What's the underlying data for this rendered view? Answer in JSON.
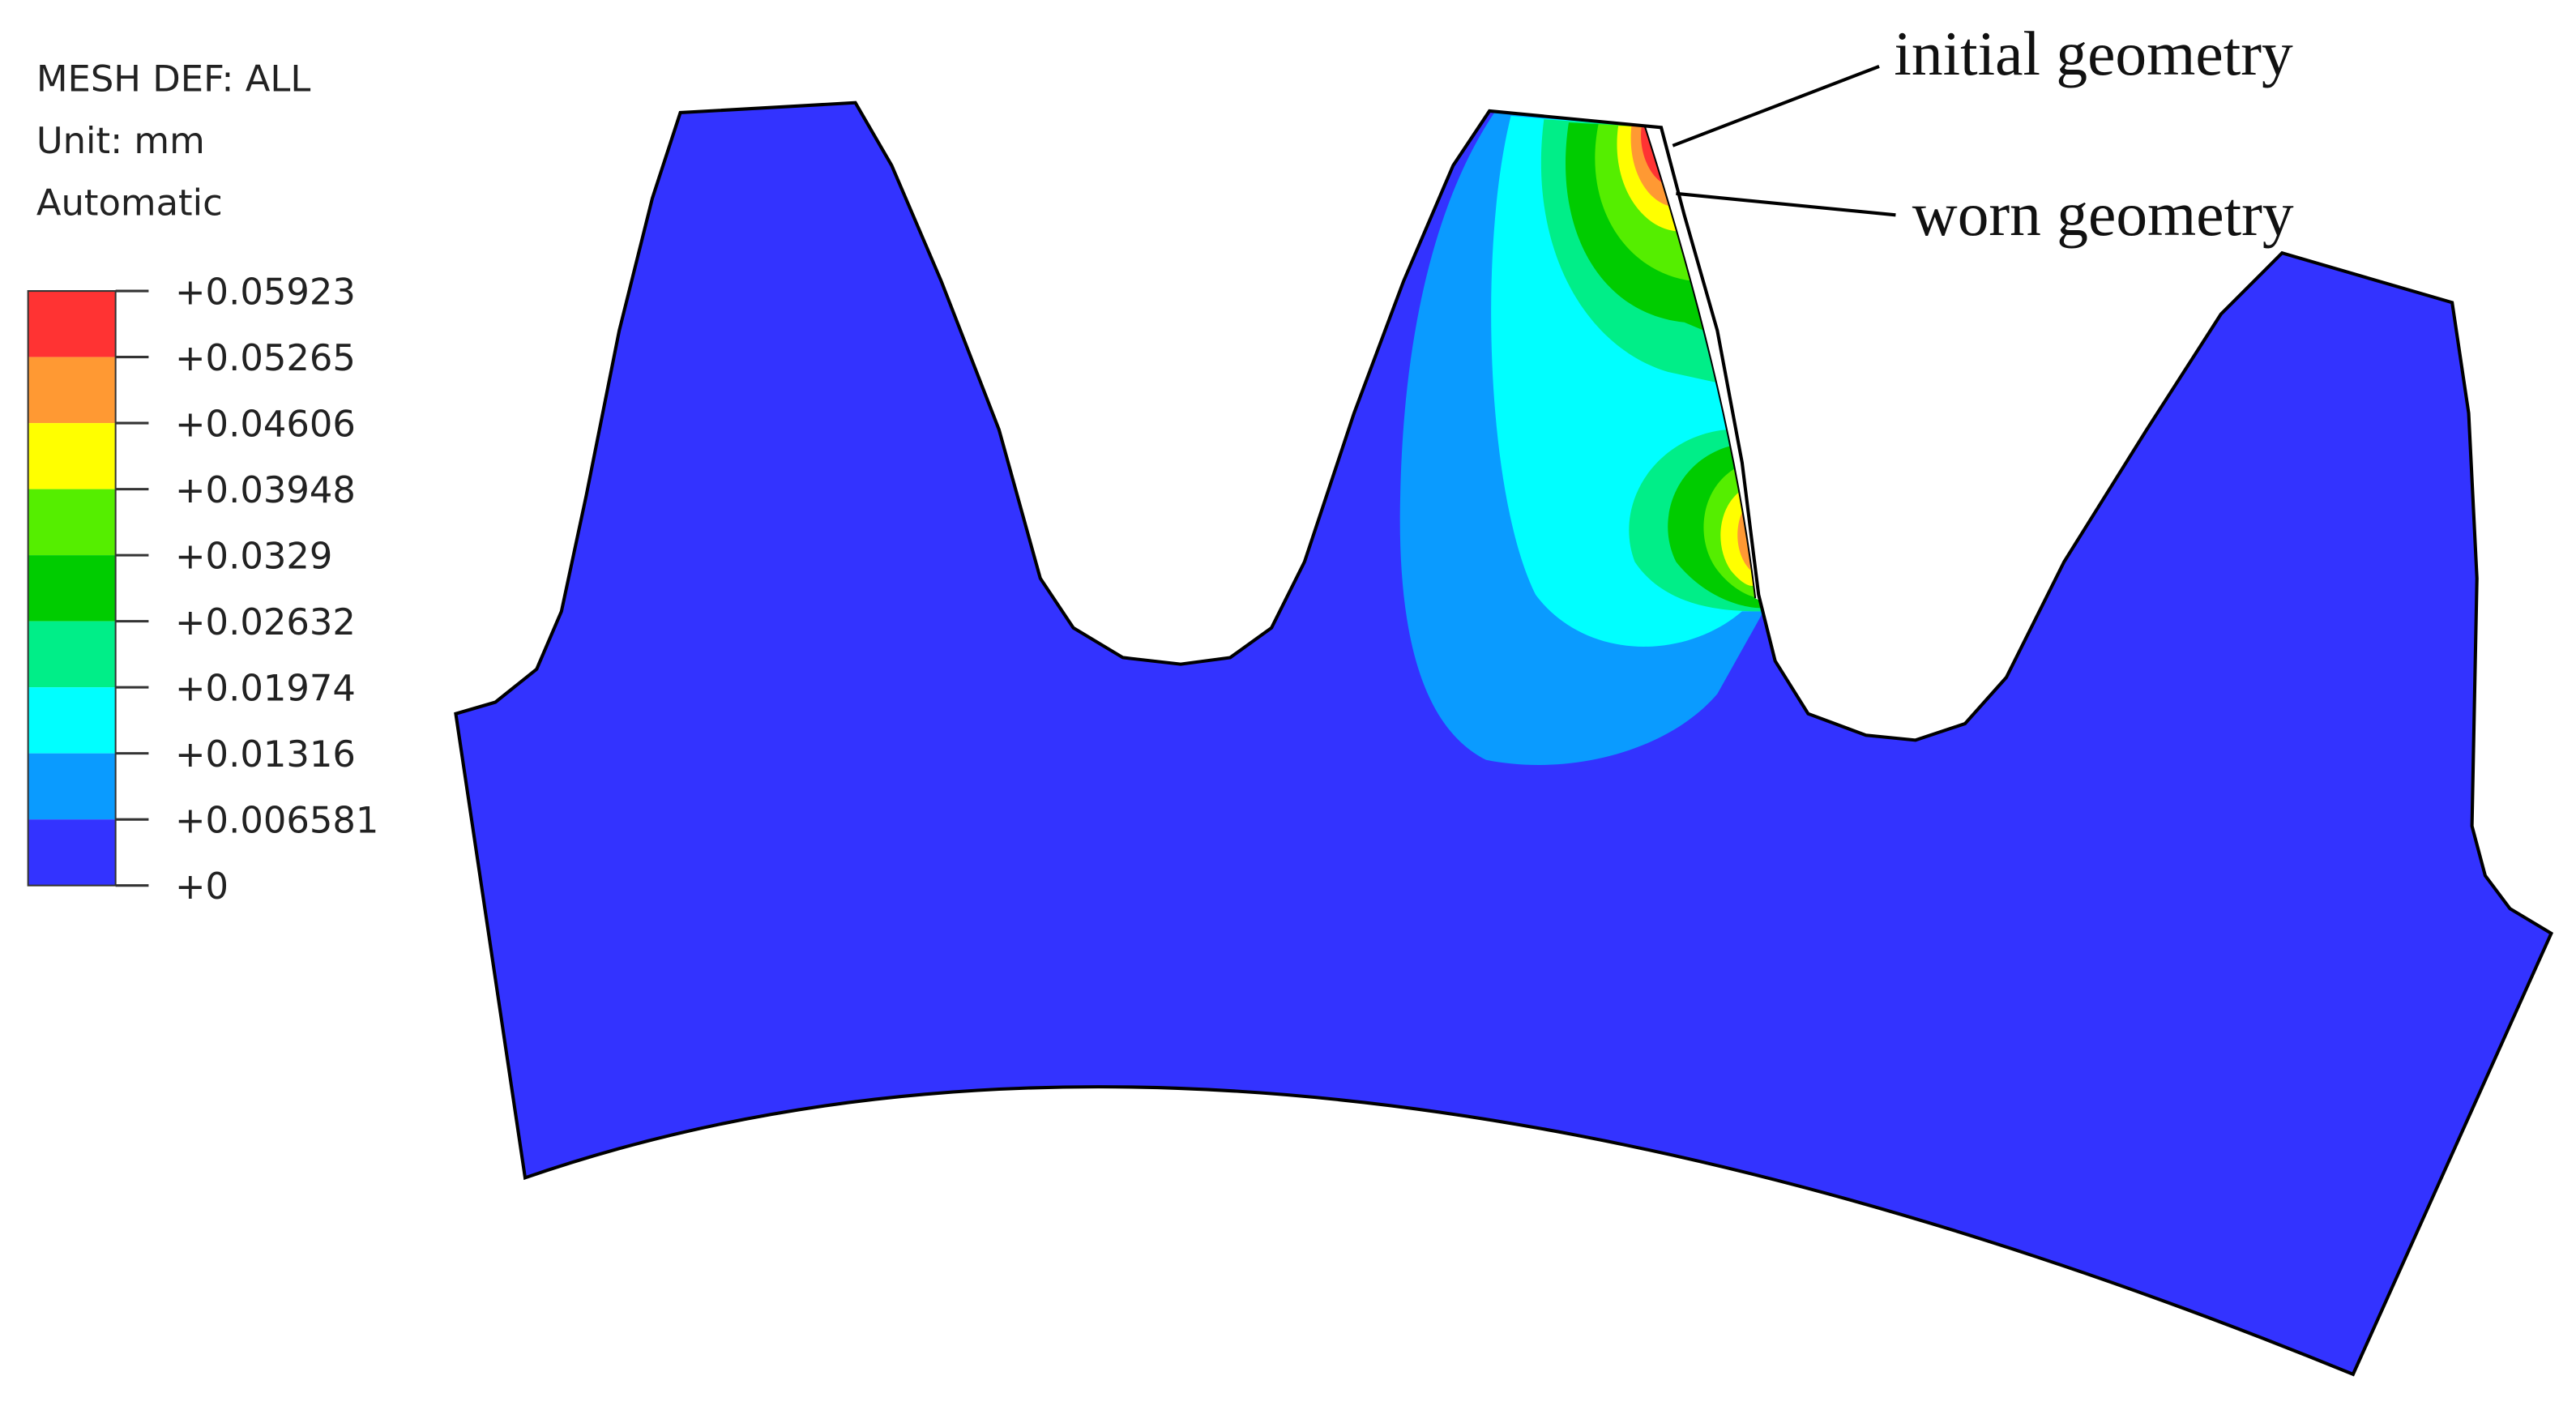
{
  "legend": {
    "header": [
      "MESH DEF: ALL",
      "Unit: mm",
      "Automatic"
    ],
    "levels": [
      "+0.05923",
      "+0.05265",
      "+0.04606",
      "+0.03948",
      "+0.0329",
      "+0.02632",
      "+0.01974",
      "+0.01316",
      "+0.006581",
      "+0"
    ],
    "colors": [
      "#ff3333",
      "#ff9933",
      "#ffff00",
      "#55ee00",
      "#00cc00",
      "#00ee88",
      "#00ffff",
      "#0a9bff",
      "#3333ff"
    ]
  },
  "annotations": [
    "initial geometry",
    "worn geometry"
  ]
}
